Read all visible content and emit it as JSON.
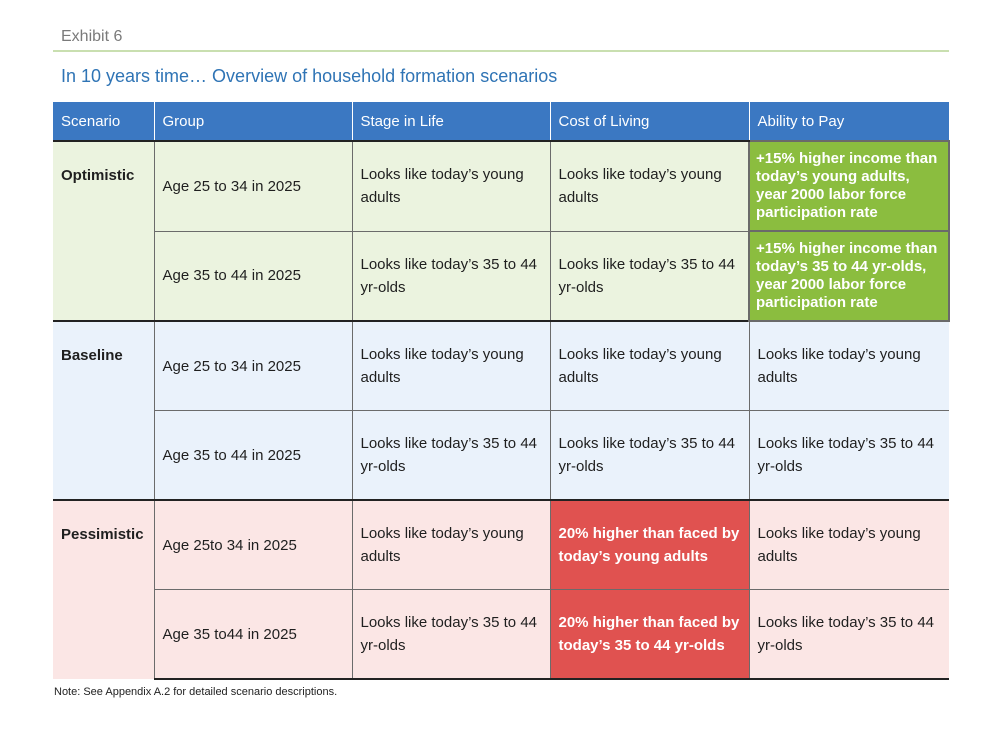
{
  "exhibit": "Exhibit 6",
  "title": "In 10 years time… Overview of household formation scenarios",
  "headers": [
    "Scenario",
    "Group",
    "Stage in Life",
    "Cost of Living",
    "Ability to Pay"
  ],
  "rows": [
    {
      "scenario": "Optimistic",
      "group": "Age 25 to 34 in 2025",
      "stage": "Looks like today’s young adults",
      "cost": "Looks like today’s young adults",
      "ability": "+15% higher income than today’s young adults, year 2000 labor force participation rate"
    },
    {
      "scenario": "",
      "group": "Age 35 to 44 in 2025",
      "stage": "Looks like today’s 35 to 44 yr-olds",
      "cost": "Looks like today’s 35 to 44 yr-olds",
      "ability": "+15% higher income than today’s 35 to 44 yr-olds, year 2000 labor force participation rate"
    },
    {
      "scenario": "Baseline",
      "group": "Age 25 to 34 in 2025",
      "stage": "Looks like today’s young adults",
      "cost": "Looks like today’s young adults",
      "ability": "Looks like today’s young adults"
    },
    {
      "scenario": "",
      "group": "Age 35 to 44 in 2025",
      "stage": "Looks like today’s 35 to 44 yr-olds",
      "cost": "Looks like today’s 35 to 44 yr-olds",
      "ability": "Looks like today’s 35 to 44 yr-olds"
    },
    {
      "scenario": "Pessimistic",
      "group": "Age 25to 34 in 2025",
      "stage": "Looks like today’s young adults",
      "cost": "20% higher than faced by today’s young adults",
      "ability": "Looks like today’s young adults"
    },
    {
      "scenario": "",
      "group": "Age 35 to44 in 2025",
      "stage": "Looks like today’s 35 to 44 yr-olds",
      "cost": "20% higher than faced by today’s 35 to 44 yr-olds",
      "ability": "Looks like today’s 35 to 44 yr-olds"
    }
  ],
  "note": "Note: See Appendix A.2 for detailed scenario descriptions.",
  "colors": {
    "header_bg": "#3b78c2",
    "title": "#2f74b5",
    "optimistic_bg": "#ebf3df",
    "baseline_bg": "#eaf2fb",
    "pessimistic_bg": "#fbe6e5",
    "highlight_green": "#8bbd3f",
    "highlight_red": "#e05250"
  }
}
